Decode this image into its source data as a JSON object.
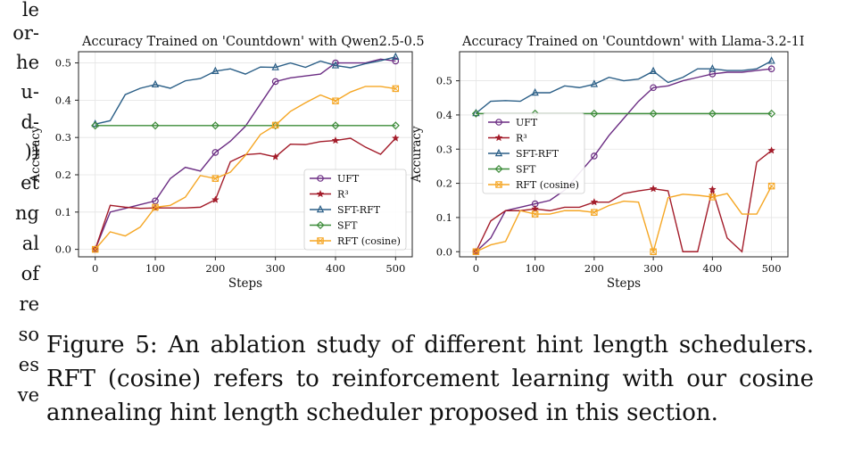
{
  "left_column_fragments": [
    "le",
    "or-",
    "he",
    "u-",
    "d-",
    "))",
    "et",
    "ng",
    "al",
    "of",
    "re",
    "so",
    "es",
    "ve"
  ],
  "caption": {
    "label": "Figure 5:",
    "text": "An ablation study of different hint length schedulers. RFT (cosine) refers to reinforcement learning with our cosine annealing hint length scheduler proposed in this section."
  },
  "chart_data": [
    {
      "type": "line",
      "title": "Accuracy Trained on 'Countdown' with Qwen2.5-0.5",
      "xlabel": "Steps",
      "ylabel": "Accuracy",
      "xlim": [
        0,
        500
      ],
      "ylim": [
        -0.02,
        0.53
      ],
      "xticks": [
        0,
        100,
        200,
        300,
        400,
        500
      ],
      "yticks": [
        0.0,
        0.1,
        0.2,
        0.3,
        0.4,
        0.5
      ],
      "grid": true,
      "legend_position": "lower-right",
      "series": [
        {
          "name": "UFT",
          "color": "#6b2d83",
          "marker": "circle",
          "x": [
            0,
            25,
            50,
            75,
            100,
            125,
            150,
            175,
            200,
            225,
            250,
            275,
            300,
            325,
            350,
            375,
            400,
            425,
            450,
            475,
            500
          ],
          "y": [
            0.0,
            0.1,
            0.11,
            0.12,
            0.13,
            0.19,
            0.22,
            0.21,
            0.26,
            0.29,
            0.33,
            0.39,
            0.45,
            0.46,
            0.465,
            0.47,
            0.5,
            0.5,
            0.5,
            0.51,
            0.505
          ]
        },
        {
          "name": "R³",
          "color": "#a31c2a",
          "marker": "star",
          "x": [
            0,
            25,
            50,
            75,
            100,
            125,
            150,
            175,
            200,
            225,
            250,
            275,
            300,
            325,
            350,
            375,
            400,
            425,
            450,
            475,
            500
          ],
          "y": [
            0.0,
            0.118,
            0.113,
            0.11,
            0.111,
            0.111,
            0.111,
            0.113,
            0.133,
            0.235,
            0.254,
            0.257,
            0.248,
            0.282,
            0.281,
            0.289,
            0.292,
            0.298,
            0.274,
            0.255,
            0.298
          ]
        },
        {
          "name": "SFT-RFT",
          "color": "#2b5f87",
          "marker": "triangle",
          "x": [
            0,
            25,
            50,
            75,
            100,
            125,
            150,
            175,
            200,
            225,
            250,
            275,
            300,
            325,
            350,
            375,
            400,
            425,
            450,
            475,
            500
          ],
          "y": [
            0.336,
            0.345,
            0.415,
            0.432,
            0.442,
            0.432,
            0.452,
            0.458,
            0.478,
            0.484,
            0.47,
            0.489,
            0.488,
            0.5,
            0.488,
            0.505,
            0.493,
            0.487,
            0.498,
            0.506,
            0.516
          ]
        },
        {
          "name": "SFT",
          "color": "#3d8c3a",
          "marker": "diamond",
          "x": [
            0,
            100,
            200,
            300,
            400,
            500
          ],
          "y": [
            0.332,
            0.332,
            0.332,
            0.332,
            0.332,
            0.332
          ]
        },
        {
          "name": "RFT (cosine)",
          "color": "#f5a623",
          "marker": "square-x",
          "x": [
            0,
            25,
            50,
            75,
            100,
            125,
            150,
            175,
            200,
            225,
            250,
            275,
            300,
            325,
            350,
            375,
            400,
            425,
            450,
            475,
            500
          ],
          "y": [
            0.0,
            0.047,
            0.036,
            0.06,
            0.113,
            0.118,
            0.14,
            0.198,
            0.19,
            0.207,
            0.252,
            0.308,
            0.333,
            0.37,
            0.393,
            0.414,
            0.398,
            0.422,
            0.437,
            0.437,
            0.431
          ]
        }
      ]
    },
    {
      "type": "line",
      "title": "Accuracy Trained on 'Countdown' with Llama-3.2-1I",
      "xlabel": "Steps",
      "ylabel": "Accuracy",
      "xlim": [
        0,
        500
      ],
      "ylim": [
        -0.015,
        0.585
      ],
      "xticks": [
        0,
        100,
        200,
        300,
        400,
        500
      ],
      "yticks": [
        0.0,
        0.1,
        0.2,
        0.3,
        0.4,
        0.5
      ],
      "grid": true,
      "legend_position": "upper-left",
      "series": [
        {
          "name": "UFT",
          "color": "#6b2d83",
          "marker": "circle",
          "x": [
            0,
            25,
            50,
            75,
            100,
            125,
            150,
            175,
            200,
            225,
            250,
            275,
            300,
            325,
            350,
            375,
            400,
            425,
            450,
            475,
            500
          ],
          "y": [
            0.0,
            0.04,
            0.12,
            0.13,
            0.14,
            0.15,
            0.18,
            0.23,
            0.28,
            0.34,
            0.39,
            0.44,
            0.48,
            0.485,
            0.5,
            0.51,
            0.52,
            0.525,
            0.525,
            0.53,
            0.535
          ]
        },
        {
          "name": "R³",
          "color": "#a31c2a",
          "marker": "star",
          "x": [
            0,
            25,
            50,
            75,
            100,
            125,
            150,
            175,
            200,
            225,
            250,
            275,
            300,
            325,
            350,
            375,
            400,
            425,
            450,
            475,
            500
          ],
          "y": [
            0.0,
            0.09,
            0.12,
            0.12,
            0.125,
            0.12,
            0.13,
            0.13,
            0.145,
            0.145,
            0.17,
            0.178,
            0.184,
            0.178,
            0.0,
            0.0,
            0.182,
            0.04,
            0.0,
            0.262,
            0.296
          ]
        },
        {
          "name": "SFT-RFT",
          "color": "#2b5f87",
          "marker": "triangle",
          "x": [
            0,
            25,
            50,
            75,
            100,
            125,
            150,
            175,
            200,
            225,
            250,
            275,
            300,
            325,
            350,
            375,
            400,
            425,
            450,
            475,
            500
          ],
          "y": [
            0.405,
            0.44,
            0.442,
            0.44,
            0.465,
            0.465,
            0.485,
            0.48,
            0.49,
            0.51,
            0.5,
            0.505,
            0.528,
            0.495,
            0.51,
            0.535,
            0.535,
            0.53,
            0.53,
            0.535,
            0.558
          ]
        },
        {
          "name": "SFT",
          "color": "#3d8c3a",
          "marker": "diamond",
          "x": [
            0,
            100,
            200,
            300,
            400,
            500
          ],
          "y": [
            0.404,
            0.404,
            0.404,
            0.404,
            0.404,
            0.404
          ]
        },
        {
          "name": "RFT (cosine)",
          "color": "#f5a623",
          "marker": "square-x",
          "x": [
            0,
            25,
            50,
            75,
            100,
            125,
            150,
            175,
            200,
            225,
            250,
            275,
            300,
            325,
            350,
            375,
            400,
            425,
            450,
            475,
            500
          ],
          "y": [
            0.0,
            0.02,
            0.03,
            0.12,
            0.11,
            0.11,
            0.12,
            0.12,
            0.115,
            0.135,
            0.148,
            0.145,
            0.0,
            0.158,
            0.168,
            0.165,
            0.16,
            0.17,
            0.11,
            0.11,
            0.192
          ]
        }
      ]
    }
  ]
}
